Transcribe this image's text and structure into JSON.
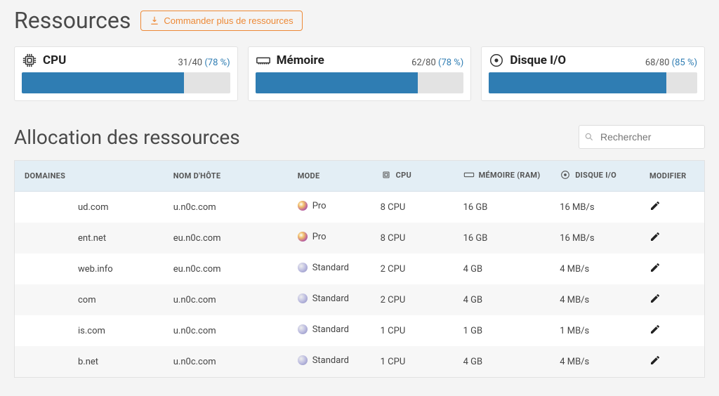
{
  "header": {
    "title": "Ressources",
    "order_button": "Commander plus de ressources"
  },
  "cards": {
    "cpu": {
      "label": "CPU",
      "used": 31,
      "total": 40,
      "pct": 78,
      "pct_display": "(78 %)",
      "bar_color": "#2f7db3",
      "bar_bg": "#e3e3e3"
    },
    "mem": {
      "label": "Mémoire",
      "used": 62,
      "total": 80,
      "pct": 78,
      "pct_display": "(78 %)",
      "bar_color": "#2f7db3",
      "bar_bg": "#e3e3e3"
    },
    "io": {
      "label": "Disque I/O",
      "used": 68,
      "total": 80,
      "pct": 85,
      "pct_display": "(85 %)",
      "bar_color": "#2f7db3",
      "bar_bg": "#e3e3e3"
    }
  },
  "allocation": {
    "title": "Allocation des ressources",
    "search_placeholder": "Rechercher"
  },
  "table": {
    "columns": {
      "domaines": "DOMAINES",
      "host": "NOM D'HÔTE",
      "mode": "MODE",
      "cpu": "CPU",
      "mem": "MÉMOIRE (RAM)",
      "io": "DISQUE I/O",
      "edit": "MODIFIER"
    },
    "rows": [
      {
        "domain": "ud.com",
        "host": "u.n0c.com",
        "mode": "Pro",
        "mode_class": "mode-pro",
        "cpu": "8 CPU",
        "mem": "16 GB",
        "io": "16 MB/s"
      },
      {
        "domain": "ent.net",
        "host": "eu.n0c.com",
        "mode": "Pro",
        "mode_class": "mode-pro",
        "cpu": "8 CPU",
        "mem": "16 GB",
        "io": "16 MB/s"
      },
      {
        "domain": "web.info",
        "host": "eu.n0c.com",
        "mode": "Standard",
        "mode_class": "mode-std",
        "cpu": "2 CPU",
        "mem": "4 GB",
        "io": "4 MB/s"
      },
      {
        "domain": "com",
        "host": "u.n0c.com",
        "mode": "Standard",
        "mode_class": "mode-std",
        "cpu": "2 CPU",
        "mem": "4 GB",
        "io": "4 MB/s"
      },
      {
        "domain": "is.com",
        "host": "u.n0c.com",
        "mode": "Standard",
        "mode_class": "mode-std",
        "cpu": "1 CPU",
        "mem": "1 GB",
        "io": "1 MB/s"
      },
      {
        "domain": "b.net",
        "host": "u.n0c.com",
        "mode": "Standard",
        "mode_class": "mode-std",
        "cpu": "1 CPU",
        "mem": "4 GB",
        "io": "4 MB/s"
      }
    ]
  },
  "colors": {
    "accent": "#2f7db3",
    "order_border": "#ed8936",
    "thead_bg": "#e3eef5",
    "row_alt": "#f7f7f7"
  }
}
